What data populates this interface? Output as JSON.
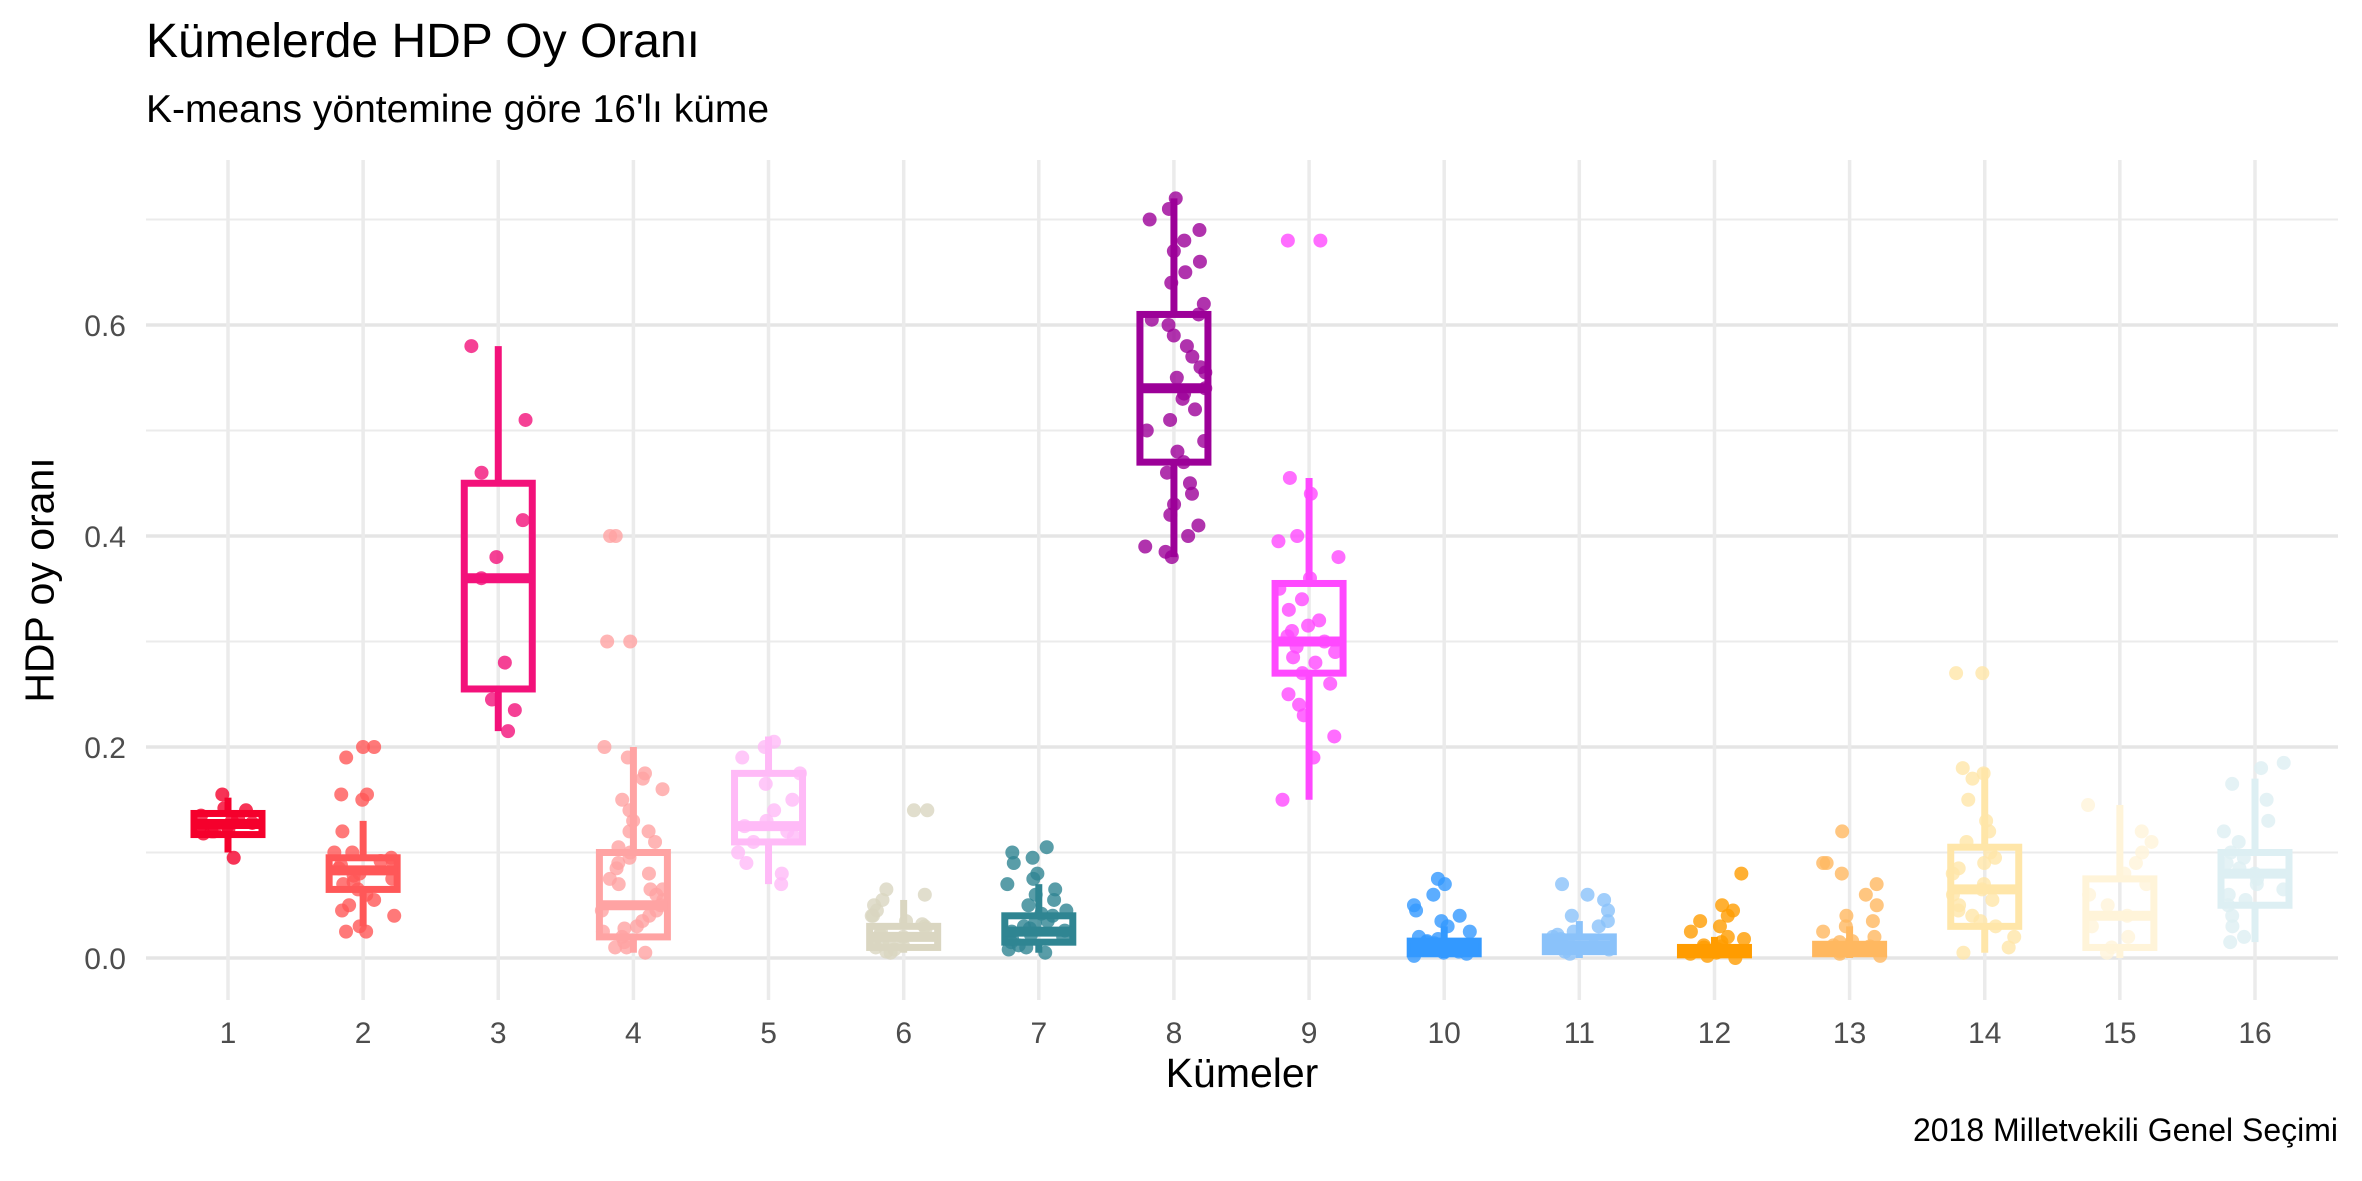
{
  "chart_data": {
    "type": "boxplot-jitter",
    "title": "Kümelerde HDP Oy Oranı",
    "subtitle": "K-means yöntemine göre 16'lı küme",
    "caption": "2018 Milletvekili Genel Seçimi",
    "xlabel": "Kümeler",
    "ylabel": "HDP oy oranı",
    "ylim": [
      -0.04,
      0.72
    ],
    "y_ticks": [
      "0.0",
      "0.2",
      "0.4",
      "0.6"
    ],
    "y_tick_values": [
      0,
      0.2,
      0.4,
      0.6
    ],
    "grid": true,
    "legend": "none",
    "categories": [
      "1",
      "2",
      "3",
      "4",
      "5",
      "6",
      "7",
      "8",
      "9",
      "10",
      "11",
      "12",
      "13",
      "14",
      "15",
      "16"
    ],
    "series": [
      {
        "colour": "#F5002C",
        "box": {
          "min": 0.1,
          "q1": 0.117,
          "median": 0.127,
          "q3": 0.137,
          "max": 0.152
        },
        "points": [
          0.125,
          0.13,
          0.118,
          0.12,
          0.142,
          0.122,
          0.135,
          0.128,
          0.095,
          0.155,
          0.12,
          0.14,
          0.132,
          0.125
        ]
      },
      {
        "colour": "#FF5758",
        "box": {
          "min": 0.03,
          "q1": 0.065,
          "median": 0.083,
          "q3": 0.095,
          "max": 0.13
        },
        "points": [
          0.2,
          0.19,
          0.2,
          0.155,
          0.155,
          0.15,
          0.12,
          0.1,
          0.095,
          0.09,
          0.085,
          0.08,
          0.075,
          0.07,
          0.065,
          0.06,
          0.055,
          0.05,
          0.045,
          0.04,
          0.03,
          0.025,
          0.025,
          0.1,
          0.088,
          0.092,
          0.078,
          0.072
        ]
      },
      {
        "colour": "#F3117A",
        "box": {
          "min": 0.215,
          "q1": 0.255,
          "median": 0.36,
          "q3": 0.45,
          "max": 0.58
        },
        "points": [
          0.58,
          0.51,
          0.46,
          0.415,
          0.38,
          0.36,
          0.28,
          0.245,
          0.235,
          0.215
        ]
      },
      {
        "colour": "#FFA3A3",
        "box": {
          "min": 0.005,
          "q1": 0.02,
          "median": 0.05,
          "q3": 0.1,
          "max": 0.2
        },
        "points": [
          0.4,
          0.4,
          0.3,
          0.3,
          0.2,
          0.19,
          0.175,
          0.17,
          0.16,
          0.15,
          0.14,
          0.13,
          0.12,
          0.11,
          0.1,
          0.095,
          0.09,
          0.085,
          0.08,
          0.075,
          0.07,
          0.065,
          0.06,
          0.055,
          0.05,
          0.045,
          0.04,
          0.035,
          0.03,
          0.025,
          0.02,
          0.015,
          0.01,
          0.01,
          0.005,
          0.12,
          0.105,
          0.065,
          0.045,
          0.028
        ]
      },
      {
        "colour": "#FFBAF7",
        "box": {
          "min": 0.07,
          "q1": 0.11,
          "median": 0.125,
          "q3": 0.175,
          "max": 0.21
        },
        "points": [
          0.205,
          0.2,
          0.19,
          0.175,
          0.165,
          0.15,
          0.14,
          0.13,
          0.125,
          0.12,
          0.115,
          0.11,
          0.1,
          0.09,
          0.08,
          0.07
        ]
      },
      {
        "colour": "#DAD6C1",
        "box": {
          "min": 0.005,
          "q1": 0.01,
          "median": 0.02,
          "q3": 0.03,
          "max": 0.055
        },
        "points": [
          0.14,
          0.14,
          0.065,
          0.06,
          0.055,
          0.05,
          0.045,
          0.04,
          0.035,
          0.03,
          0.028,
          0.025,
          0.02,
          0.018,
          0.015,
          0.012,
          0.01,
          0.008,
          0.006,
          0.005,
          0.032,
          0.022,
          0.014,
          0.04
        ]
      },
      {
        "colour": "#2F8592",
        "box": {
          "min": 0.005,
          "q1": 0.015,
          "median": 0.025,
          "q3": 0.04,
          "max": 0.07
        },
        "points": [
          0.105,
          0.1,
          0.095,
          0.09,
          0.08,
          0.075,
          0.07,
          0.065,
          0.06,
          0.055,
          0.05,
          0.045,
          0.04,
          0.035,
          0.03,
          0.028,
          0.025,
          0.02,
          0.018,
          0.015,
          0.012,
          0.01,
          0.008,
          0.005,
          0.033,
          0.022,
          0.042,
          0.026
        ]
      },
      {
        "colour": "#9C0098",
        "box": {
          "min": 0.38,
          "q1": 0.47,
          "median": 0.54,
          "q3": 0.61,
          "max": 0.72
        },
        "points": [
          0.72,
          0.71,
          0.7,
          0.69,
          0.68,
          0.67,
          0.66,
          0.65,
          0.64,
          0.62,
          0.61,
          0.6,
          0.59,
          0.58,
          0.57,
          0.56,
          0.55,
          0.54,
          0.53,
          0.52,
          0.51,
          0.5,
          0.49,
          0.48,
          0.47,
          0.46,
          0.45,
          0.44,
          0.43,
          0.42,
          0.41,
          0.4,
          0.39,
          0.385,
          0.38,
          0.555,
          0.535,
          0.605
        ]
      },
      {
        "colour": "#FF48FF",
        "box": {
          "min": 0.15,
          "q1": 0.27,
          "median": 0.3,
          "q3": 0.355,
          "max": 0.455
        },
        "points": [
          0.68,
          0.68,
          0.455,
          0.44,
          0.4,
          0.395,
          0.38,
          0.36,
          0.35,
          0.34,
          0.33,
          0.32,
          0.31,
          0.3,
          0.295,
          0.29,
          0.28,
          0.27,
          0.26,
          0.25,
          0.24,
          0.23,
          0.21,
          0.19,
          0.15,
          0.305,
          0.315,
          0.285
        ]
      },
      {
        "colour": "#3399FF",
        "box": {
          "min": 0.0,
          "q1": 0.004,
          "median": 0.01,
          "q3": 0.016,
          "max": 0.03
        },
        "points": [
          0.075,
          0.07,
          0.06,
          0.05,
          0.045,
          0.04,
          0.035,
          0.03,
          0.025,
          0.02,
          0.018,
          0.015,
          0.012,
          0.01,
          0.008,
          0.006,
          0.004,
          0.002,
          0.01,
          0.012,
          0.014,
          0.016,
          0.008,
          0.005
        ]
      },
      {
        "colour": "#8AC2FA",
        "box": {
          "min": 0.0,
          "q1": 0.006,
          "median": 0.012,
          "q3": 0.02,
          "max": 0.035
        },
        "points": [
          0.07,
          0.06,
          0.055,
          0.045,
          0.04,
          0.035,
          0.03,
          0.025,
          0.02,
          0.018,
          0.015,
          0.012,
          0.01,
          0.008,
          0.006,
          0.004,
          0.016,
          0.022
        ]
      },
      {
        "colour": "#FF9C00",
        "box": {
          "min": 0.0,
          "q1": 0.003,
          "median": 0.007,
          "q3": 0.01,
          "max": 0.02
        },
        "points": [
          0.08,
          0.05,
          0.045,
          0.04,
          0.035,
          0.03,
          0.025,
          0.02,
          0.018,
          0.015,
          0.012,
          0.01,
          0.008,
          0.006,
          0.004,
          0.002,
          0.0,
          0.007,
          0.005,
          0.009,
          0.011
        ]
      },
      {
        "colour": "#FFB860",
        "box": {
          "min": 0.0,
          "q1": 0.004,
          "median": 0.009,
          "q3": 0.013,
          "max": 0.03
        },
        "points": [
          0.12,
          0.09,
          0.09,
          0.08,
          0.07,
          0.06,
          0.05,
          0.04,
          0.035,
          0.03,
          0.025,
          0.02,
          0.015,
          0.012,
          0.01,
          0.008,
          0.006,
          0.004,
          0.002,
          0.011,
          0.009,
          0.016
        ]
      },
      {
        "colour": "#FFE6A9",
        "box": {
          "min": 0.005,
          "q1": 0.03,
          "median": 0.065,
          "q3": 0.105,
          "max": 0.18
        },
        "points": [
          0.27,
          0.27,
          0.18,
          0.175,
          0.17,
          0.15,
          0.13,
          0.12,
          0.11,
          0.1,
          0.095,
          0.09,
          0.085,
          0.08,
          0.07,
          0.065,
          0.06,
          0.055,
          0.05,
          0.045,
          0.04,
          0.035,
          0.03,
          0.02,
          0.01,
          0.005
        ]
      },
      {
        "colour": "#FFF4D9",
        "box": {
          "min": 0.0,
          "q1": 0.01,
          "median": 0.04,
          "q3": 0.075,
          "max": 0.145
        },
        "points": [
          0.145,
          0.12,
          0.11,
          0.1,
          0.09,
          0.08,
          0.07,
          0.06,
          0.05,
          0.04,
          0.03,
          0.02,
          0.01,
          0.005
        ]
      },
      {
        "colour": "#DDEFF3",
        "box": {
          "min": 0.015,
          "q1": 0.05,
          "median": 0.08,
          "q3": 0.1,
          "max": 0.17
        },
        "points": [
          0.185,
          0.18,
          0.165,
          0.15,
          0.13,
          0.12,
          0.11,
          0.1,
          0.095,
          0.09,
          0.085,
          0.08,
          0.075,
          0.07,
          0.065,
          0.06,
          0.055,
          0.05,
          0.04,
          0.03,
          0.02,
          0.015
        ]
      }
    ]
  }
}
